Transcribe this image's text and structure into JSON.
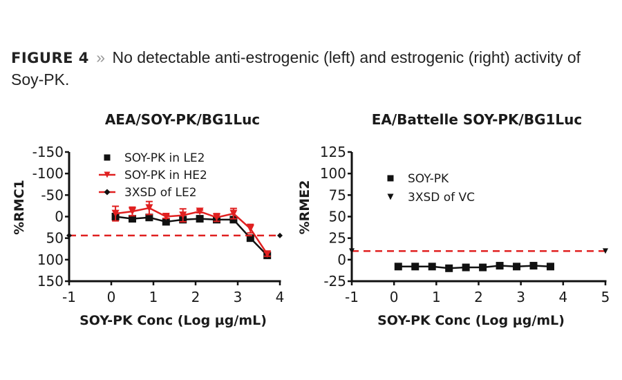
{
  "caption": {
    "figure_label": "FIGURE 4",
    "separator": "»",
    "text": "No detectable anti-estrogenic (left) and estrogenic (right) activity of Soy-PK."
  },
  "colors": {
    "black": "#111111",
    "red": "#e02020"
  },
  "chart_data": [
    {
      "type": "line",
      "title": "AEA/SOY-PK/BG1Luc",
      "xlabel": "SOY-PK Conc (Log µg/mL)",
      "ylabel": "%RMC1",
      "xlim": [
        -1,
        4
      ],
      "ylim": [
        150,
        -150
      ],
      "y_inverted": true,
      "xticks": [
        -1,
        0,
        1,
        2,
        3,
        4
      ],
      "yticks": [
        -150,
        -100,
        -50,
        0,
        50,
        100,
        150
      ],
      "grid": false,
      "legend_position": "upper-left-inside",
      "x": [
        0.1,
        0.5,
        0.9,
        1.3,
        1.7,
        2.1,
        2.5,
        2.9,
        3.3,
        3.7
      ],
      "series": [
        {
          "name": "SOY-PK in LE2",
          "marker": "square",
          "color": "#111111",
          "values": [
            0,
            5,
            2,
            12,
            7,
            5,
            7,
            7,
            50,
            90
          ]
        },
        {
          "name": "SOY-PK in HE2",
          "marker": "triangle-down",
          "color": "#e02020",
          "values": [
            -7,
            -12,
            -20,
            0,
            -3,
            -12,
            2,
            -7,
            28,
            87
          ],
          "error": [
            17,
            10,
            15,
            4,
            15,
            3,
            9,
            12,
            10,
            5
          ]
        },
        {
          "name": "3XSD of LE2",
          "marker": "diamond",
          "color": "#e02020",
          "style": "dashed",
          "values": [
            44
          ]
        }
      ]
    },
    {
      "type": "line",
      "title": "EA/Battelle SOY-PK/BG1Luc",
      "xlabel": "SOY-PK Conc (Log µg/mL)",
      "ylabel": "%RME2",
      "xlim": [
        -1,
        5
      ],
      "ylim": [
        -25,
        125
      ],
      "xticks": [
        -1,
        0,
        1,
        2,
        3,
        4,
        5
      ],
      "yticks": [
        -25,
        0,
        25,
        50,
        75,
        100,
        125
      ],
      "grid": false,
      "legend_position": "upper-left-inside",
      "x": [
        0.1,
        0.5,
        0.9,
        1.3,
        1.7,
        2.1,
        2.5,
        2.9,
        3.3,
        3.7
      ],
      "series": [
        {
          "name": "SOY-PK",
          "marker": "square",
          "color": "#111111",
          "values": [
            -8,
            -8,
            -8,
            -10,
            -9,
            -9,
            -7,
            -8,
            -7,
            -8
          ]
        },
        {
          "name": "3XSD of VC",
          "marker": "triangle-down",
          "color": "#e02020",
          "style": "dashed",
          "values": [
            10
          ]
        }
      ]
    }
  ]
}
